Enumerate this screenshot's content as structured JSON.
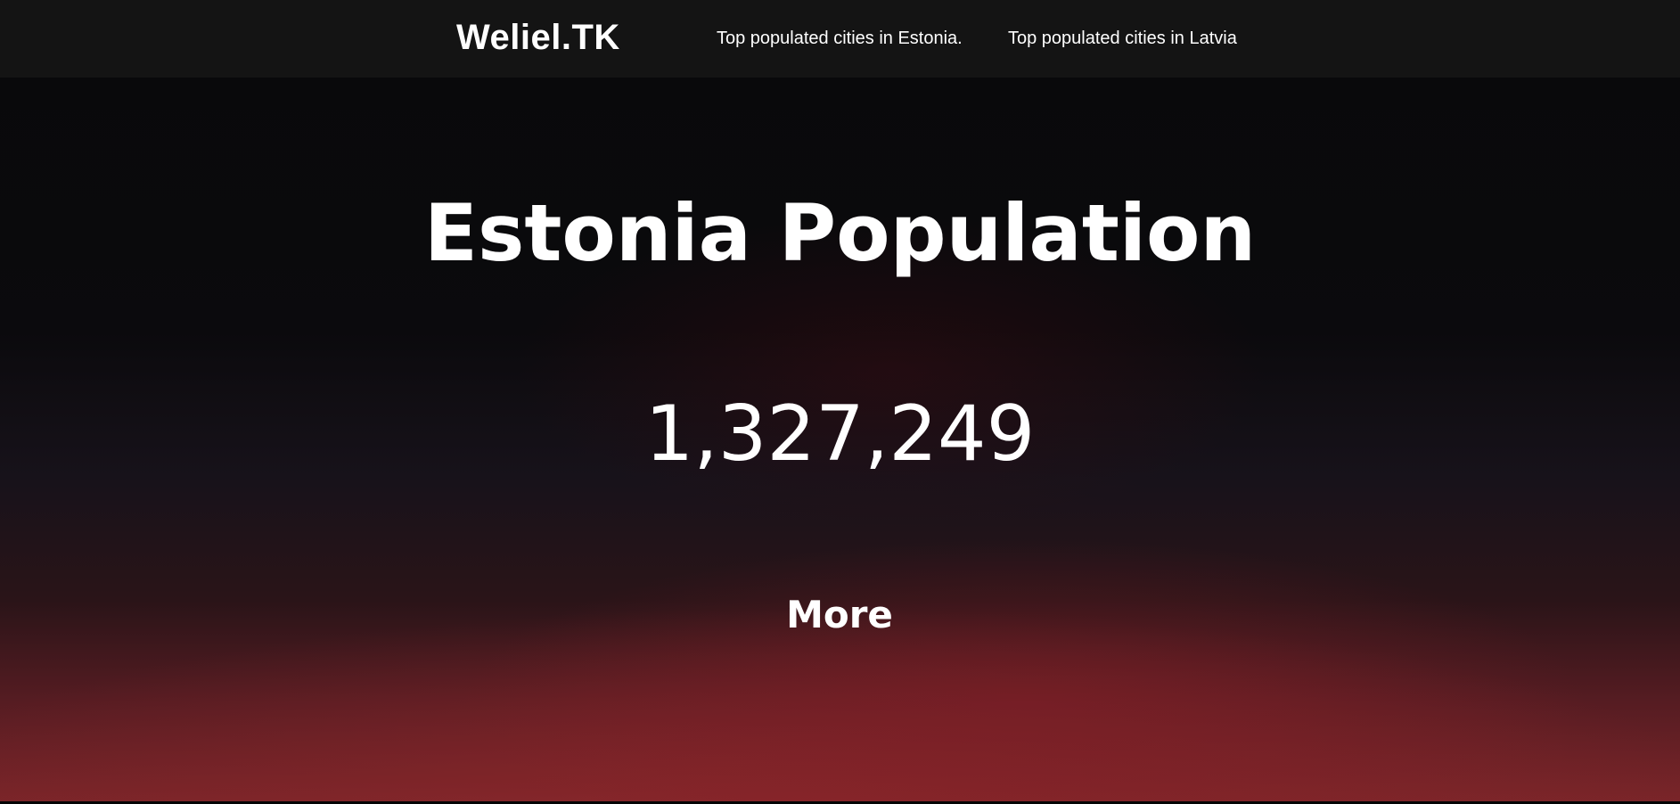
{
  "navbar": {
    "brand": "Weliel.TK",
    "links": [
      {
        "label": "Top populated cities in Estonia."
      },
      {
        "label": "Top populated cities in Latvia"
      }
    ]
  },
  "hero": {
    "title": "Estonia Population",
    "population": "1,327,249",
    "more_label": "More"
  },
  "colors": {
    "navbar_background": "#141414",
    "text": "#ffffff",
    "background_top": "#09090b",
    "background_bottom": "#7a2529"
  }
}
